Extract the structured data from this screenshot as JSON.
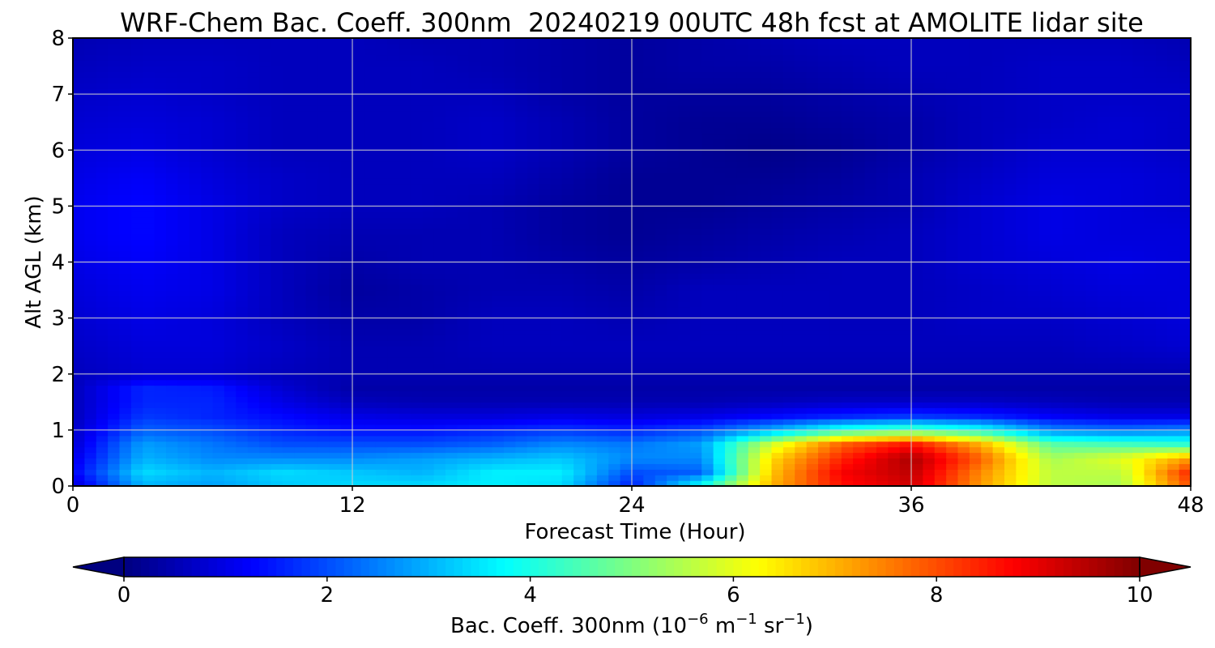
{
  "chart_data": {
    "type": "heatmap",
    "title": "WRF-Chem Bac. Coeff. 300nm  20240219 00UTC 48h fcst at AMOLITE lidar site",
    "xlabel": "Forecast Time (Hour)",
    "ylabel": "Alt AGL (km)",
    "xlim": [
      0,
      48
    ],
    "ylim": [
      0,
      8
    ],
    "x_ticks": [
      "0",
      "12",
      "24",
      "36",
      "48"
    ],
    "y_ticks": [
      "0",
      "1",
      "2",
      "3",
      "4",
      "5",
      "6",
      "7",
      "8"
    ],
    "grid": true,
    "colormap": "jet",
    "colorbar": {
      "label_main": "Bac. Coeff. 300nm  (10",
      "label_exp1": "−6",
      "label_mid": " m",
      "label_exp2": "−1",
      "label_mid2": " sr",
      "label_exp3": "−1",
      "label_end": ")",
      "min": 0,
      "max": 10,
      "ticks": [
        "0",
        "2",
        "4",
        "6",
        "8",
        "10"
      ],
      "extend": "both"
    },
    "alt_km": [
      0,
      0.25,
      0.5,
      0.75,
      1.0,
      1.25,
      1.5,
      1.75,
      2.0,
      2.5,
      3.0,
      3.5,
      4.0,
      4.5,
      5.0,
      5.5,
      6.0,
      6.5,
      7.0,
      7.5,
      8.0
    ],
    "hours": [
      0,
      3,
      6,
      9,
      12,
      15,
      18,
      21,
      24,
      27,
      30,
      33,
      36,
      39,
      42,
      45,
      48
    ],
    "values": [
      [
        0.8,
        3.0,
        2.8,
        3.2,
        3.4,
        3.4,
        3.6,
        3.4,
        1.5,
        4.0,
        7.0,
        8.6,
        9.2,
        7.2,
        5.6,
        5.4,
        8.0
      ],
      [
        1.2,
        3.4,
        3.0,
        3.4,
        3.2,
        3.0,
        3.6,
        3.6,
        2.0,
        2.2,
        6.8,
        8.8,
        9.4,
        7.4,
        5.6,
        5.6,
        8.4
      ],
      [
        1.0,
        3.0,
        2.6,
        2.6,
        2.6,
        2.8,
        3.0,
        3.2,
        2.6,
        2.6,
        6.6,
        8.4,
        9.6,
        7.8,
        5.4,
        6.0,
        7.2
      ],
      [
        0.8,
        2.8,
        2.4,
        2.0,
        2.0,
        2.0,
        2.2,
        2.6,
        2.4,
        2.8,
        5.8,
        7.8,
        8.6,
        7.0,
        4.6,
        4.4,
        4.2
      ],
      [
        0.7,
        2.2,
        2.0,
        1.6,
        1.4,
        1.4,
        1.6,
        1.8,
        1.6,
        2.0,
        3.0,
        4.2,
        4.6,
        4.0,
        2.6,
        2.4,
        2.6
      ],
      [
        0.6,
        1.8,
        1.6,
        1.3,
        1.0,
        0.9,
        0.9,
        1.0,
        0.9,
        1.0,
        1.3,
        1.6,
        1.8,
        1.6,
        1.2,
        1.0,
        1.0
      ],
      [
        0.6,
        1.6,
        1.6,
        1.0,
        0.6,
        0.5,
        0.5,
        0.5,
        0.5,
        0.5,
        0.6,
        0.7,
        0.7,
        0.7,
        0.6,
        0.5,
        0.5
      ],
      [
        0.6,
        1.6,
        1.5,
        0.8,
        0.4,
        0.4,
        0.4,
        0.4,
        0.4,
        0.4,
        0.4,
        0.4,
        0.4,
        0.4,
        0.4,
        0.4,
        0.4
      ],
      [
        0.6,
        0.8,
        0.8,
        0.6,
        0.5,
        0.5,
        0.5,
        0.5,
        0.5,
        0.5,
        0.5,
        0.5,
        0.5,
        0.5,
        0.5,
        0.5,
        0.5
      ],
      [
        0.7,
        0.9,
        0.9,
        0.7,
        0.5,
        0.5,
        0.6,
        0.6,
        0.6,
        0.6,
        0.6,
        0.6,
        0.6,
        0.6,
        0.6,
        0.7,
        0.8
      ],
      [
        0.8,
        1.0,
        0.9,
        0.6,
        0.4,
        0.4,
        0.6,
        0.6,
        0.5,
        0.6,
        0.6,
        0.6,
        0.6,
        0.7,
        0.7,
        0.8,
        0.9
      ],
      [
        0.9,
        1.1,
        1.0,
        0.6,
        0.3,
        0.4,
        0.5,
        0.5,
        0.4,
        0.6,
        0.6,
        0.6,
        0.6,
        0.7,
        0.8,
        0.9,
        0.9
      ],
      [
        1.0,
        1.2,
        1.0,
        0.6,
        0.4,
        0.5,
        0.5,
        0.4,
        0.3,
        0.4,
        0.5,
        0.6,
        0.6,
        0.8,
        0.9,
        1.0,
        0.9
      ],
      [
        1.1,
        1.3,
        1.0,
        0.6,
        0.5,
        0.5,
        0.5,
        0.3,
        0.2,
        0.3,
        0.4,
        0.5,
        0.6,
        0.8,
        1.0,
        0.9,
        0.9
      ],
      [
        1.1,
        1.3,
        1.0,
        0.7,
        0.6,
        0.6,
        0.5,
        0.3,
        0.2,
        0.2,
        0.3,
        0.4,
        0.5,
        0.8,
        1.0,
        0.9,
        0.8
      ],
      [
        1.0,
        1.2,
        0.9,
        0.7,
        0.6,
        0.6,
        0.6,
        0.4,
        0.2,
        0.2,
        0.2,
        0.3,
        0.5,
        0.7,
        0.9,
        0.9,
        0.8
      ],
      [
        0.9,
        1.0,
        0.8,
        0.6,
        0.6,
        0.6,
        0.7,
        0.5,
        0.3,
        0.2,
        0.1,
        0.2,
        0.4,
        0.6,
        0.8,
        0.8,
        0.7
      ],
      [
        0.8,
        0.9,
        0.8,
        0.6,
        0.6,
        0.6,
        0.7,
        0.5,
        0.3,
        0.2,
        0.2,
        0.3,
        0.4,
        0.6,
        0.7,
        0.8,
        0.7
      ],
      [
        0.7,
        0.8,
        0.7,
        0.6,
        0.6,
        0.6,
        0.6,
        0.4,
        0.3,
        0.3,
        0.3,
        0.4,
        0.5,
        0.6,
        0.7,
        0.7,
        0.7
      ],
      [
        0.6,
        0.7,
        0.7,
        0.6,
        0.6,
        0.6,
        0.5,
        0.4,
        0.3,
        0.4,
        0.4,
        0.5,
        0.6,
        0.6,
        0.7,
        0.7,
        0.6
      ],
      [
        0.5,
        0.6,
        0.6,
        0.6,
        0.6,
        0.5,
        0.5,
        0.4,
        0.3,
        0.4,
        0.5,
        0.6,
        0.6,
        0.6,
        0.6,
        0.6,
        0.5
      ]
    ]
  }
}
